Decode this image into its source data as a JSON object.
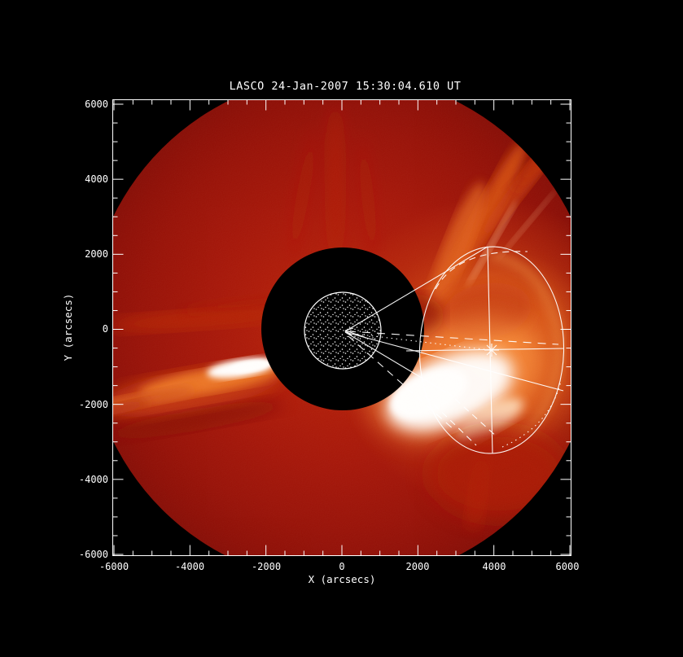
{
  "figure": {
    "title": "LASCO 24-Jan-2007 15:30:04.610 UT",
    "x_axis": {
      "label": "X (arcsecs)",
      "tick_labels": [
        "-6000",
        "-4000",
        "-2000",
        "0",
        "2000",
        "4000",
        "6000"
      ]
    },
    "y_axis": {
      "label": "Y (arcsecs)",
      "tick_labels": [
        "6000",
        "4000",
        "2000",
        "0",
        "-2000",
        "-4000",
        "-6000"
      ]
    },
    "colors": {
      "background": "#000000",
      "frame": "#ffffff",
      "corona_outer_red": "#8c0a03",
      "corona_mid_red": "#a61205",
      "cme_orange": "#e06418",
      "cme_core_white": "#ffffff",
      "overlay_white": "#ffffff"
    }
  },
  "chart_data": {
    "type": "heatmap",
    "title": "LASCO 24-Jan-2007 15:30:04.610 UT",
    "xlabel": "X (arcsecs)",
    "ylabel": "Y (arcsecs)",
    "xlim": [
      -6200,
      6200
    ],
    "ylim": [
      -6200,
      6200
    ],
    "x_ticks": [
      -6000,
      -4000,
      -2000,
      0,
      2000,
      4000,
      6000
    ],
    "y_ticks": [
      -6000,
      -4000,
      -2000,
      0,
      2000,
      4000,
      6000
    ],
    "minor_tick_step": 500,
    "grid": false,
    "legend": false,
    "image_content": {
      "description": "LASCO C3 coronagraph difference-style image: circular field of view on black background",
      "fov_circle": {
        "center_arcsec": [
          0,
          0
        ],
        "radius_arcsec": 6700
      },
      "occulter_disk": {
        "center_arcsec": [
          0,
          0
        ],
        "radius_arcsec": 2130,
        "color": "black"
      },
      "sun_stipple_disk": {
        "center_arcsec": [
          30,
          -40
        ],
        "radius_arcsec": 1010,
        "style": "white random-dot stipple with white outline"
      },
      "bright_features": [
        {
          "name": "east-streamer-core",
          "center_arcsec": [
            -2660,
            -1020
          ],
          "extent_arcsec": [
            1800,
            450
          ],
          "tilt_deg": -9,
          "brightness": "saturated white"
        },
        {
          "name": "east-streamer-tail",
          "from_arcsec": [
            -2000,
            -900
          ],
          "to_arcsec": [
            -6100,
            -2100
          ],
          "brightness": "orange"
        },
        {
          "name": "cme-bright-core-west",
          "center_arcsec": [
            2850,
            -1620
          ],
          "extent_arcsec": [
            3500,
            1800
          ],
          "tilt_deg": -22,
          "brightness": "saturated white"
        },
        {
          "name": "cme-envelope-west",
          "center_arcsec": [
            3900,
            -550
          ],
          "radius_arcsec": 4000,
          "brightness": "bright orange with swirled texture"
        },
        {
          "name": "northwest-fan-streaks",
          "from_arcsec": [
            2200,
            1500
          ],
          "to_arcsec": [
            5500,
            5200
          ],
          "brightness": "orange rays"
        },
        {
          "name": "north-faint-streamers",
          "center_arcsec": [
            -200,
            3900
          ],
          "brightness": "faint red rays"
        }
      ]
    },
    "model_overlay": {
      "description": "White wireframe CME (flux-rope/cone) model fit drawn over image",
      "ellipse_front": {
        "center_arcsec": [
          3945,
          -550
        ],
        "semi_axis_x_arcsec": 1900,
        "semi_axis_y_arcsec": 2720,
        "tilt_deg": 1.5
      },
      "apex_marker": {
        "symbol": "asterisk",
        "position_arcsec": [
          3945,
          -550
        ]
      },
      "sun_center_arrow": {
        "position_arcsec": [
          80,
          -60
        ],
        "points": "toward sun center"
      },
      "cone_legs_from_sun_center": [
        {
          "style": "solid",
          "to_arcsec": [
            3840,
            2180
          ]
        },
        {
          "style": "solid",
          "to_arcsec": [
            5830,
            -1630
          ]
        },
        {
          "style": "solid",
          "to_arcsec": [
            2720,
            -1650
          ]
        },
        {
          "style": "dashed",
          "to_arcsec": [
            5630,
            -400
          ]
        },
        {
          "style": "dotted",
          "to_arcsec": [
            3900,
            -550
          ]
        },
        {
          "style": "dashed-steep",
          "to_arcsec": [
            2950,
            -2650
          ]
        }
      ],
      "axis_lines": [
        "vertical line through ellipse poles",
        "horizontal line through ellipse center"
      ]
    }
  }
}
